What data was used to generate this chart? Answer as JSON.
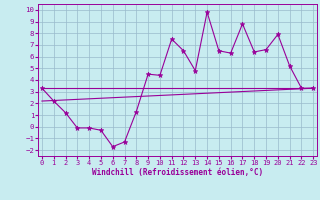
{
  "x": [
    0,
    1,
    2,
    3,
    4,
    5,
    6,
    7,
    8,
    9,
    10,
    11,
    12,
    13,
    14,
    15,
    16,
    17,
    18,
    19,
    20,
    21,
    22,
    23
  ],
  "y_main": [
    3.3,
    2.2,
    1.2,
    -0.1,
    -0.1,
    -0.3,
    -1.7,
    -1.3,
    1.3,
    4.5,
    4.4,
    7.5,
    6.5,
    4.8,
    9.8,
    6.5,
    6.3,
    8.8,
    6.4,
    6.6,
    7.9,
    5.2,
    3.3,
    3.3
  ],
  "reg_line1_x": [
    0,
    23
  ],
  "reg_line1_y": [
    3.3,
    3.3
  ],
  "reg_line2_x": [
    0,
    23
  ],
  "reg_line2_y": [
    2.2,
    3.3
  ],
  "color": "#990099",
  "bg_color": "#c8ecf0",
  "grid_color": "#99bbcc",
  "xlim": [
    -0.3,
    23.3
  ],
  "ylim": [
    -2.5,
    10.5
  ],
  "yticks": [
    -2,
    -1,
    0,
    1,
    2,
    3,
    4,
    5,
    6,
    7,
    8,
    9,
    10
  ],
  "xticks": [
    0,
    1,
    2,
    3,
    4,
    5,
    6,
    7,
    8,
    9,
    10,
    11,
    12,
    13,
    14,
    15,
    16,
    17,
    18,
    19,
    20,
    21,
    22,
    23
  ],
  "xlabel": "Windchill (Refroidissement éolien,°C)",
  "font_color": "#990099",
  "tick_fontsize": 5.0,
  "xlabel_fontsize": 5.5
}
